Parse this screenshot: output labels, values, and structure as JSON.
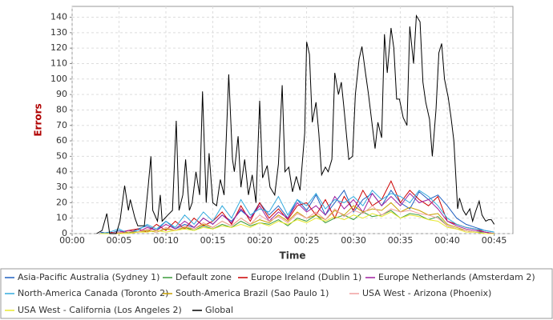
{
  "chart_data": {
    "type": "line",
    "xlabel": "Time",
    "ylabel": "Errors",
    "xlim": [
      0,
      47
    ],
    "ylim": [
      0,
      147
    ],
    "xticks": [
      {
        "value": 0,
        "label": "00:00"
      },
      {
        "value": 5,
        "label": "00:05"
      },
      {
        "value": 10,
        "label": "00:10"
      },
      {
        "value": 15,
        "label": "00:15"
      },
      {
        "value": 20,
        "label": "00:20"
      },
      {
        "value": 25,
        "label": "00:25"
      },
      {
        "value": 30,
        "label": "00:30"
      },
      {
        "value": 35,
        "label": "00:35"
      },
      {
        "value": 40,
        "label": "00:40"
      },
      {
        "value": 45,
        "label": "00:45"
      }
    ],
    "yticks": [
      0,
      10,
      20,
      30,
      40,
      50,
      60,
      70,
      80,
      90,
      100,
      110,
      120,
      130,
      140
    ],
    "grid": true,
    "legend": "bottom",
    "x": [
      3,
      4,
      5,
      6,
      7,
      8,
      9,
      10,
      11,
      12,
      13,
      14,
      15,
      16,
      17,
      18,
      19,
      20,
      21,
      22,
      23,
      24,
      25,
      26,
      27,
      28,
      29,
      30,
      31,
      32,
      33,
      34,
      35,
      36,
      37,
      38,
      39,
      40,
      41,
      42,
      43,
      44,
      45
    ],
    "series": [
      {
        "name": "Asia-Pacific Australia (Sydney 1)",
        "color": "#2060c0",
        "values": [
          1,
          0,
          2,
          0,
          3,
          5,
          2,
          8,
          3,
          6,
          4,
          10,
          6,
          12,
          8,
          15,
          10,
          20,
          12,
          18,
          10,
          22,
          15,
          25,
          12,
          20,
          28,
          14,
          22,
          26,
          18,
          28,
          20,
          16,
          27,
          22,
          25,
          18,
          10,
          6,
          4,
          2,
          1
        ]
      },
      {
        "name": "Default zone",
        "color": "#3a9a3a",
        "values": [
          0,
          0,
          1,
          0,
          1,
          2,
          1,
          3,
          2,
          4,
          2,
          5,
          3,
          6,
          4,
          8,
          5,
          7,
          6,
          9,
          5,
          10,
          8,
          12,
          7,
          10,
          12,
          9,
          14,
          11,
          12,
          15,
          10,
          13,
          12,
          9,
          11,
          5,
          3,
          2,
          1,
          1,
          0
        ]
      },
      {
        "name": "Europe Ireland (Dublin 1)",
        "color": "#cc0000",
        "values": [
          0,
          1,
          0,
          2,
          3,
          1,
          6,
          2,
          8,
          3,
          10,
          5,
          8,
          14,
          6,
          18,
          8,
          20,
          10,
          16,
          9,
          18,
          20,
          12,
          22,
          10,
          24,
          15,
          28,
          18,
          22,
          34,
          20,
          28,
          22,
          18,
          24,
          8,
          6,
          4,
          3,
          1,
          0
        ]
      },
      {
        "name": "Europe Netherlands (Amsterdam 2)",
        "color": "#a020a0",
        "values": [
          0,
          0,
          1,
          2,
          1,
          4,
          2,
          6,
          3,
          8,
          4,
          10,
          6,
          12,
          7,
          16,
          10,
          18,
          8,
          14,
          10,
          20,
          14,
          18,
          12,
          24,
          16,
          22,
          14,
          26,
          18,
          24,
          18,
          26,
          20,
          22,
          16,
          8,
          5,
          3,
          2,
          1,
          0
        ]
      },
      {
        "name": "North-America Canada (Toronto 2)",
        "color": "#33aadd",
        "values": [
          0,
          1,
          3,
          0,
          2,
          6,
          3,
          8,
          4,
          12,
          6,
          14,
          8,
          18,
          10,
          22,
          12,
          16,
          14,
          24,
          12,
          22,
          18,
          26,
          16,
          22,
          20,
          24,
          18,
          28,
          22,
          26,
          24,
          20,
          28,
          24,
          18,
          10,
          6,
          4,
          3,
          2,
          1
        ]
      },
      {
        "name": "South-America Brazil (Sao Paulo 1)",
        "color": "#c8a000",
        "values": [
          0,
          0,
          0,
          1,
          1,
          2,
          1,
          3,
          2,
          4,
          3,
          6,
          4,
          8,
          5,
          10,
          6,
          9,
          7,
          12,
          8,
          14,
          10,
          12,
          9,
          15,
          12,
          18,
          14,
          16,
          15,
          20,
          14,
          17,
          15,
          12,
          13,
          6,
          4,
          2,
          1,
          0,
          0
        ]
      },
      {
        "name": "USA West - Arizona (Phoenix)",
        "color": "#f0a0a0",
        "values": [
          0,
          0,
          1,
          0,
          1,
          3,
          1,
          4,
          2,
          5,
          3,
          7,
          4,
          8,
          5,
          10,
          6,
          12,
          8,
          11,
          7,
          13,
          10,
          14,
          9,
          16,
          11,
          15,
          13,
          18,
          12,
          16,
          14,
          15,
          13,
          12,
          10,
          5,
          3,
          2,
          1,
          0,
          0
        ]
      },
      {
        "name": "USA West - California (Los Angeles 2)",
        "color": "#e8e830",
        "values": [
          0,
          0,
          0,
          0,
          1,
          1,
          2,
          1,
          2,
          3,
          2,
          4,
          3,
          5,
          4,
          6,
          4,
          7,
          5,
          8,
          6,
          9,
          7,
          10,
          8,
          11,
          9,
          12,
          10,
          13,
          11,
          14,
          10,
          12,
          11,
          9,
          8,
          4,
          3,
          1,
          1,
          0,
          0
        ]
      },
      {
        "name": "Global",
        "color": "#000000",
        "x": [
          2.6,
          3.2,
          3.7,
          4.0,
          4.7,
          5.1,
          5.6,
          6.0,
          6.2,
          6.7,
          7.0,
          7.7,
          8.1,
          8.4,
          8.6,
          9.1,
          9.4,
          9.6,
          10.2,
          10.7,
          11.1,
          11.4,
          11.8,
          12.1,
          12.5,
          12.8,
          13.2,
          13.6,
          13.9,
          14.3,
          14.6,
          15.0,
          15.4,
          15.8,
          16.2,
          16.7,
          17.1,
          17.3,
          17.7,
          18.0,
          18.4,
          18.8,
          19.2,
          19.6,
          20.0,
          20.3,
          20.8,
          21.1,
          21.6,
          22.0,
          22.4,
          22.7,
          23.1,
          23.5,
          23.9,
          24.3,
          24.8,
          25.0,
          25.3,
          25.6,
          26.0,
          26.3,
          26.6,
          27.0,
          27.3,
          27.7,
          28.0,
          28.4,
          28.7,
          29.0,
          29.5,
          29.9,
          30.2,
          30.6,
          30.9,
          31.3,
          31.6,
          31.9,
          32.3,
          32.6,
          33.0,
          33.3,
          33.6,
          34.0,
          34.3,
          34.6,
          34.9,
          35.3,
          35.7,
          36.0,
          36.4,
          36.7,
          37.1,
          37.4,
          37.7,
          38.1,
          38.4,
          38.8,
          39.1,
          39.4,
          39.7,
          40.1,
          40.4,
          40.7,
          41.1,
          41.3,
          41.7,
          42.0,
          42.4,
          42.7,
          43.0,
          43.4,
          43.7,
          44.1,
          44.4,
          44.7,
          45.0
        ],
        "values": [
          0,
          2,
          13,
          0,
          0,
          8,
          31,
          15,
          22,
          10,
          5,
          5,
          30,
          50,
          15,
          8,
          25,
          8,
          12,
          15,
          73,
          15,
          25,
          48,
          15,
          20,
          40,
          25,
          92,
          20,
          52,
          20,
          18,
          35,
          25,
          103,
          48,
          40,
          63,
          30,
          48,
          25,
          38,
          20,
          86,
          36,
          44,
          30,
          25,
          45,
          96,
          40,
          43,
          27,
          37,
          28,
          65,
          124,
          116,
          72,
          85,
          65,
          38,
          43,
          40,
          48,
          104,
          90,
          98,
          80,
          48,
          50,
          90,
          113,
          121,
          103,
          90,
          75,
          55,
          72,
          62,
          129,
          104,
          133,
          120,
          87,
          87,
          75,
          70,
          134,
          110,
          141,
          137,
          98,
          85,
          74,
          50,
          80,
          117,
          123,
          100,
          88,
          75,
          60,
          16,
          23,
          15,
          12,
          16,
          8,
          14,
          21,
          12,
          8,
          9,
          9,
          6
        ]
      }
    ]
  }
}
